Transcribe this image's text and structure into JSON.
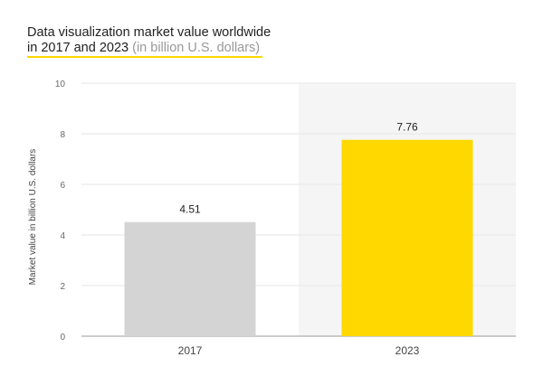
{
  "chart_data": {
    "type": "bar",
    "title_line1": "Data visualization market value worldwide",
    "title_line2": "in 2017 and 2023",
    "subtitle": "(in billion U.S. dollars)",
    "ylabel": "Market value in billion U.S. dollars",
    "xlabel": "",
    "categories": [
      "2017",
      "2023"
    ],
    "values": [
      4.51,
      7.76
    ],
    "data_labels": [
      "4.51",
      "7.76"
    ],
    "ylim": [
      0,
      10
    ],
    "yticks": [
      0,
      2,
      4,
      6,
      8,
      10
    ],
    "grid": true,
    "highlighted_category": "2023",
    "colors": {
      "bar_default": "#d4d4d4",
      "bar_highlight": "#ffd800",
      "highlight_bg": "#f5f5f5",
      "accent": "#ffd800"
    }
  }
}
